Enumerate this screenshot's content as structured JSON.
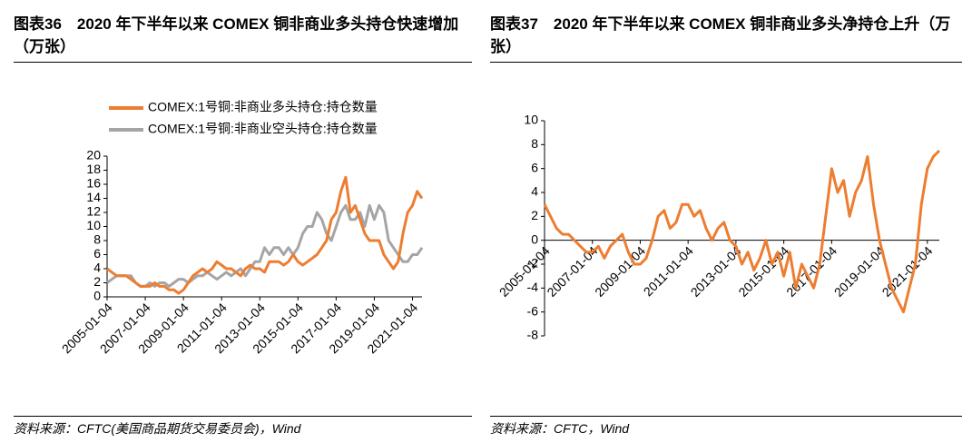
{
  "chart_data": [
    {
      "type": "line",
      "title": "图表36　2020 年下半年以来 COMEX 铜非商业多头持仓快速增加（万张）",
      "source": "资料来源：CFTC(美国商品期货交易委员会)，Wind",
      "categories": [
        "2005-01-04",
        null,
        null,
        null,
        null,
        null,
        null,
        null,
        "2007-01-04",
        null,
        null,
        null,
        null,
        null,
        null,
        null,
        "2009-01-04",
        null,
        null,
        null,
        null,
        null,
        null,
        null,
        "2011-01-04",
        null,
        null,
        null,
        null,
        null,
        null,
        null,
        "2013-01-04",
        null,
        null,
        null,
        null,
        null,
        null,
        null,
        "2015-01-04",
        null,
        null,
        null,
        null,
        null,
        null,
        null,
        "2017-01-04",
        null,
        null,
        null,
        null,
        null,
        null,
        null,
        "2019-01-04",
        null,
        null,
        null,
        null,
        null,
        null,
        null,
        "2021-01-04",
        null,
        null
      ],
      "ylim": [
        0,
        20
      ],
      "yticks": [
        0,
        2,
        4,
        6,
        8,
        10,
        12,
        14,
        16,
        18,
        20
      ],
      "legend": "top-left",
      "series": [
        {
          "name": "COMEX:1号铜:非商业空头持仓:持仓数量",
          "color": "#A5A5A5",
          "values": [
            2,
            2.5,
            3,
            3,
            3,
            3,
            2,
            1.5,
            1.5,
            2,
            1.5,
            2,
            2,
            1.5,
            2,
            2.5,
            2.5,
            2,
            2.5,
            3,
            3,
            3.5,
            3,
            2.5,
            3,
            3.5,
            3,
            3.5,
            4,
            3,
            4,
            5,
            5,
            7,
            6,
            7,
            7,
            6,
            7,
            6,
            7,
            9,
            10,
            10,
            12,
            11,
            9,
            8,
            10,
            12,
            13,
            11,
            11,
            12,
            10,
            13,
            11,
            13,
            12,
            8,
            7,
            6,
            5,
            5,
            6,
            6,
            7
          ]
        },
        {
          "name": "COMEX:1号铜:非商业多头持仓:持仓数量",
          "color": "#ED7D31",
          "values": [
            4,
            3.5,
            3,
            3,
            3,
            2.5,
            2,
            1.5,
            1.5,
            1.5,
            2,
            1.5,
            1.5,
            1,
            1,
            0.5,
            1,
            2,
            3,
            3.5,
            4,
            3.5,
            4,
            5,
            4.5,
            4,
            4,
            3.5,
            3,
            4,
            4.5,
            4,
            4,
            3.5,
            5,
            5,
            5,
            4.5,
            5,
            6,
            5,
            4.5,
            5,
            5.5,
            6,
            7,
            8,
            11,
            12,
            15,
            17,
            12,
            13,
            11,
            9,
            8,
            8,
            8,
            6,
            5,
            4,
            5,
            9,
            12,
            13,
            15,
            14
          ]
        }
      ]
    },
    {
      "type": "line",
      "title": "图表37　2020 年下半年以来 COMEX 铜非商业多头净持仓上升（万张）",
      "source": "资料来源：CFTC，Wind",
      "categories": [
        "2005-01-04",
        null,
        null,
        null,
        null,
        null,
        null,
        null,
        "2007-01-04",
        null,
        null,
        null,
        null,
        null,
        null,
        null,
        "2009-01-04",
        null,
        null,
        null,
        null,
        null,
        null,
        null,
        "2011-01-04",
        null,
        null,
        null,
        null,
        null,
        null,
        null,
        "2013-01-04",
        null,
        null,
        null,
        null,
        null,
        null,
        null,
        "2015-01-04",
        null,
        null,
        null,
        null,
        null,
        null,
        null,
        "2017-01-04",
        null,
        null,
        null,
        null,
        null,
        null,
        null,
        "2019-01-04",
        null,
        null,
        null,
        null,
        null,
        null,
        null,
        "2021-01-04",
        null,
        null
      ],
      "ylim": [
        -8,
        10
      ],
      "yticks": [
        -8,
        -6,
        -4,
        -2,
        0,
        2,
        4,
        6,
        8,
        10
      ],
      "series": [
        {
          "color": "#ED7D31",
          "values": [
            3,
            2,
            1,
            0.5,
            0.5,
            0,
            -0.5,
            -1,
            -1,
            -0.5,
            -1.5,
            -0.5,
            0,
            0.5,
            -1,
            -2,
            -2,
            -1.5,
            0,
            2,
            2.5,
            1,
            1.5,
            3,
            3,
            2,
            2.5,
            1,
            0,
            1,
            1.5,
            0,
            -0.5,
            -2,
            -1,
            -2.5,
            -1.5,
            0,
            -2,
            -1,
            -3,
            -1,
            -4,
            -2,
            -3,
            -4,
            -2,
            2,
            6,
            4,
            5,
            2,
            4,
            5,
            7,
            3,
            0,
            -2,
            -4,
            -5,
            -6,
            -4,
            -2,
            3,
            6,
            7,
            7.5
          ]
        }
      ]
    }
  ]
}
